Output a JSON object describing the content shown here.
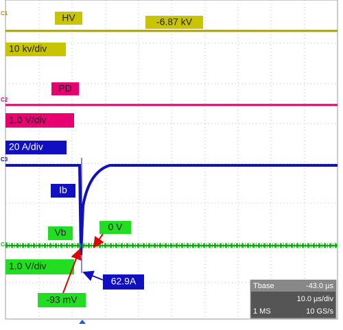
{
  "channels": {
    "c1": "C1",
    "c2": "C2",
    "c3": "C3",
    "c4": "C4"
  },
  "labels": {
    "hv": "HV",
    "hv_value": "-6.87 kV",
    "c1_scale": "10 kv/div",
    "pd": "PD",
    "c2_scale": "1.0 V/div",
    "c3_scale": "20 A/div",
    "ib": "Ib",
    "vb": "Vb",
    "zero": "0 V",
    "c4_scale": "1.0 V/div",
    "vb_value": "-93 mV",
    "ib_value": "62.9A"
  },
  "info": {
    "tbase_label": "Tbase",
    "tbase_value": "-43.0 µs",
    "div": "10.0 µs/div",
    "memory": "1 MS",
    "rate": "10 GS/s"
  }
}
